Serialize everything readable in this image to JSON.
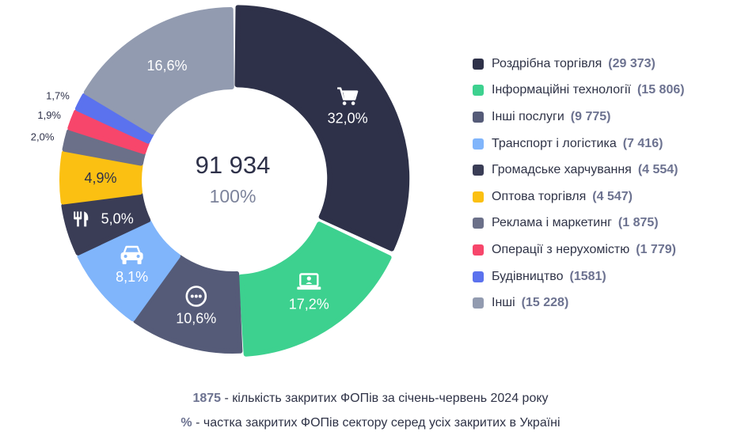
{
  "chart_data": {
    "type": "pie",
    "center_value": "91 934",
    "center_percent": "100%",
    "slices": [
      {
        "label": "Роздрібна торгівля",
        "value": 29373,
        "value_text": "(29 373)",
        "percent": 32.0,
        "percent_text": "32,0%",
        "color": "#2e3149",
        "icon": "shopping-cart-icon"
      },
      {
        "label": "Інформаційні технології",
        "value": 15806,
        "value_text": "(15 806)",
        "percent": 17.2,
        "percent_text": "17,2%",
        "color": "#3dd18f",
        "icon": "laptop-icon"
      },
      {
        "label": "Інші послуги",
        "value": 9775,
        "value_text": "(9 775)",
        "percent": 10.6,
        "percent_text": "10,6%",
        "color": "#555b78",
        "icon": "more-dots-icon"
      },
      {
        "label": "Транспорт і логістика",
        "value": 7416,
        "value_text": "(7 416)",
        "percent": 8.1,
        "percent_text": "8,1%",
        "color": "#80b5fb",
        "icon": "car-icon"
      },
      {
        "label": "Громадське харчування",
        "value": 4554,
        "value_text": "(4 554)",
        "percent": 5.0,
        "percent_text": "5,0%",
        "color": "#3a3d56",
        "icon": "fork-knife-icon"
      },
      {
        "label": "Оптова торгівля",
        "value": 4547,
        "value_text": "(4 547)",
        "percent": 4.9,
        "percent_text": "4,9%",
        "color": "#fbc012",
        "icon": ""
      },
      {
        "label": "Реклама і маркетинг",
        "value": 1875,
        "value_text": "(1 875)",
        "percent": 2.0,
        "percent_text": "2,0%",
        "color": "#6b7089",
        "icon": ""
      },
      {
        "label": "Операції з нерухомістю",
        "value": 1779,
        "value_text": "(1 779)",
        "percent": 1.9,
        "percent_text": "1,9%",
        "color": "#f7466b",
        "icon": ""
      },
      {
        "label": "Будівництво",
        "value": 1581,
        "value_text": "(1581)",
        "percent": 1.7,
        "percent_text": "1,7%",
        "color": "#5b72ee",
        "icon": ""
      },
      {
        "label": "Інші",
        "value": 15228,
        "value_text": "(15 228)",
        "percent": 16.6,
        "percent_text": "16,6%",
        "color": "#929bb0",
        "icon": ""
      }
    ]
  },
  "footnotes": {
    "line1_key": "1875",
    "line1_text": " - кількість закритих ФОПів за січень-червень 2024 року",
    "line2_key": "%",
    "line2_text": " - частка закритих ФОПів сектору серед усіх закритих в Україні"
  }
}
